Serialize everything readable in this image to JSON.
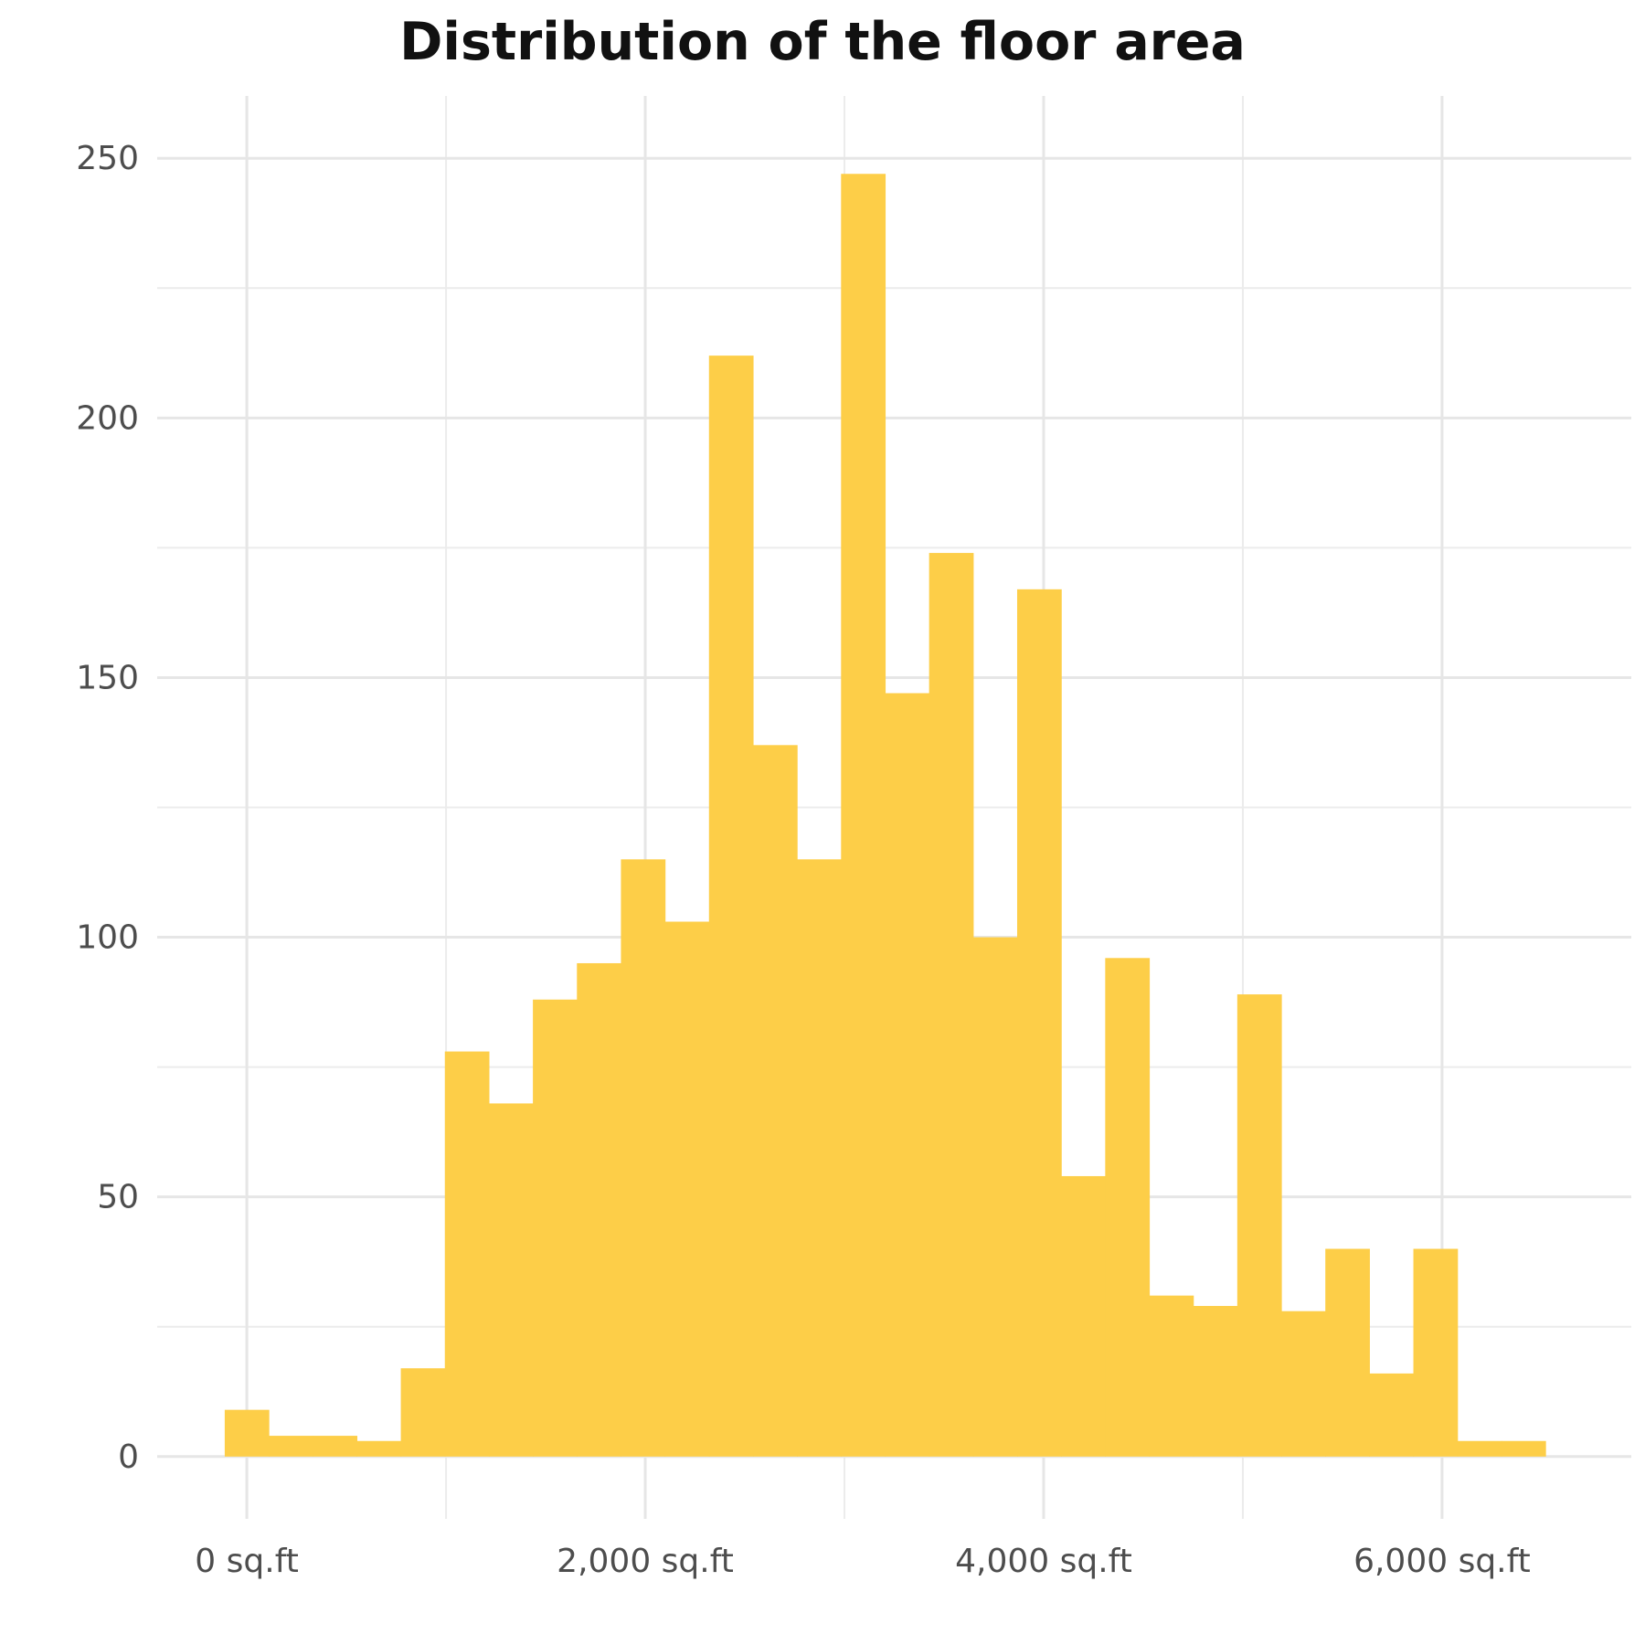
{
  "chart_data": {
    "type": "bar",
    "title": "Distribution of the floor area",
    "xlabel": "",
    "ylabel": "",
    "bar_color": "#FDCE48",
    "grid": true,
    "xlim": [
      -450,
      6950
    ],
    "ylim": [
      -12,
      262
    ],
    "x_ticks": [
      {
        "value": 0,
        "label": "0 sq.ft"
      },
      {
        "value": 2000,
        "label": "2,000 sq.ft"
      },
      {
        "value": 4000,
        "label": "4,000 sq.ft"
      },
      {
        "value": 6000,
        "label": "6,000 sq.ft"
      }
    ],
    "x_minor_ticks": [
      1000,
      3000,
      5000
    ],
    "y_ticks": [
      {
        "value": 0,
        "label": "0"
      },
      {
        "value": 50,
        "label": "50"
      },
      {
        "value": 100,
        "label": "100"
      },
      {
        "value": 150,
        "label": "150"
      },
      {
        "value": 200,
        "label": "200"
      },
      {
        "value": 250,
        "label": "250"
      }
    ],
    "y_minor_ticks": [
      25,
      75,
      125,
      175,
      225
    ],
    "bin_width": 221,
    "bin_start": -111,
    "values": [
      9,
      4,
      4,
      3,
      17,
      78,
      68,
      88,
      95,
      115,
      103,
      212,
      137,
      115,
      247,
      147,
      174,
      100,
      167,
      54,
      96,
      31,
      29,
      89,
      28,
      40,
      16,
      40,
      3,
      3
    ]
  }
}
